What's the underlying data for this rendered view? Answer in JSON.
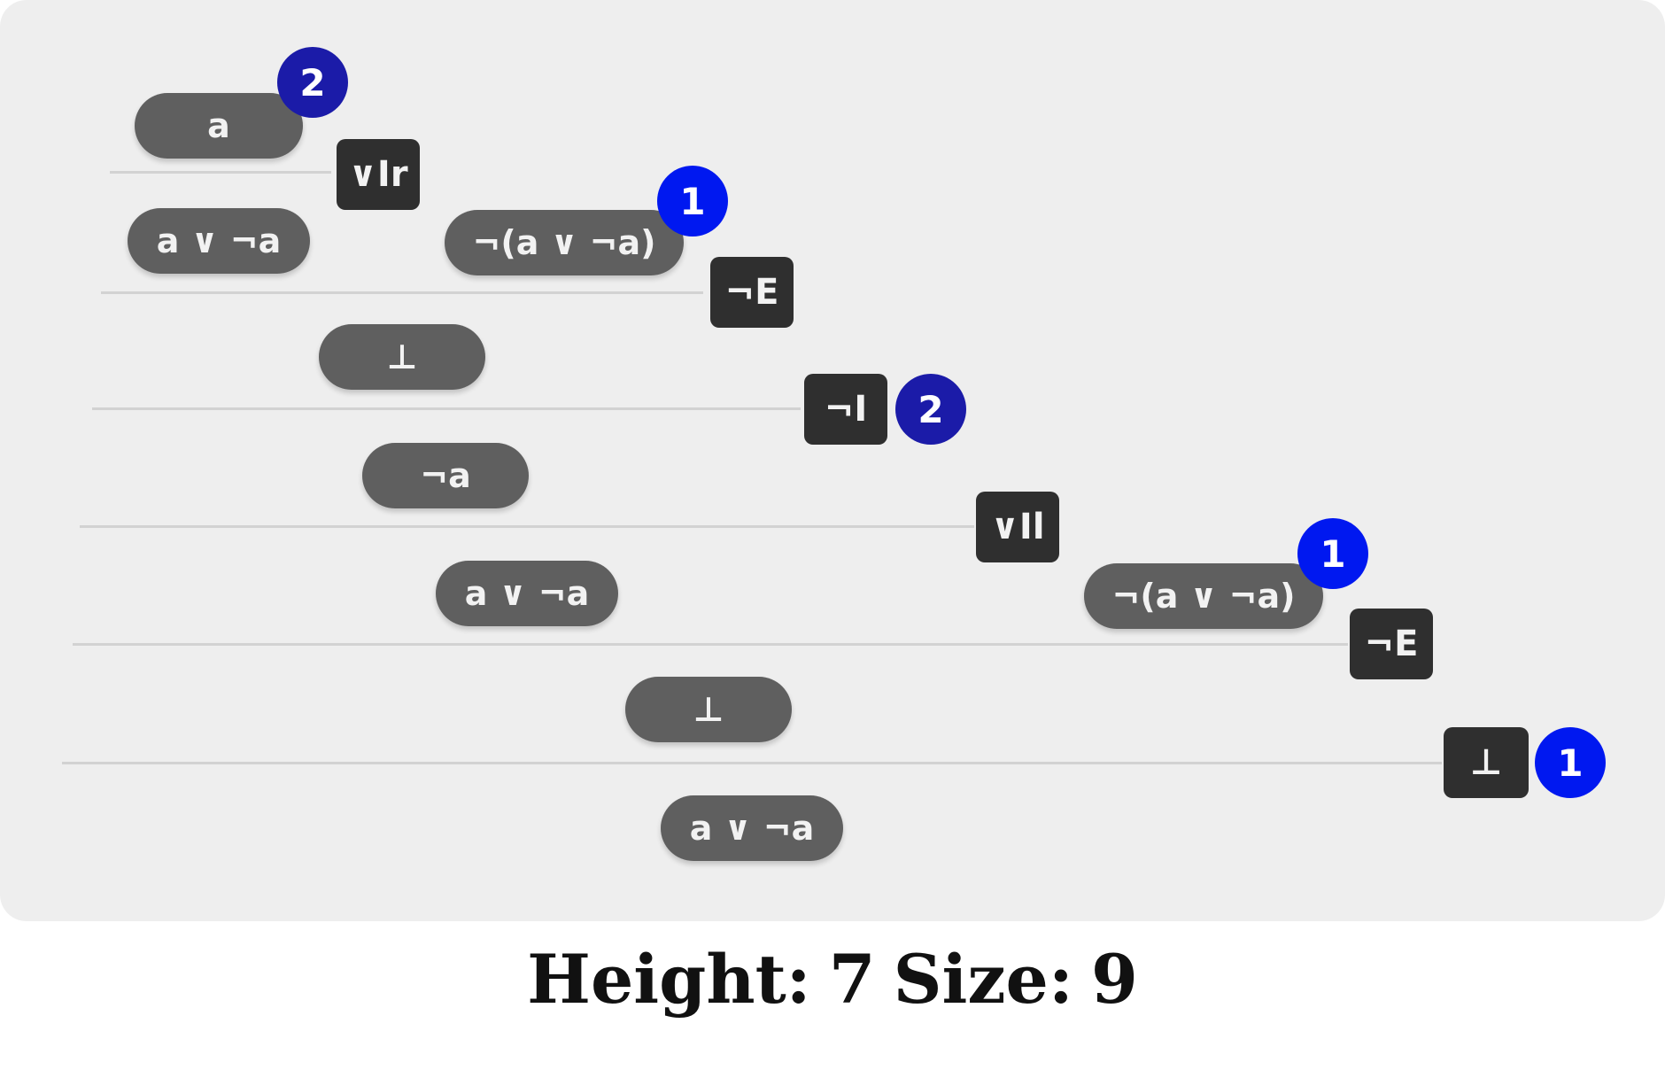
{
  "colors": {
    "badge_dark": "#1b1ba8",
    "badge_bright": "#0018f0",
    "formula_bg": "#5f5f5f",
    "rule_tag_bg": "#2f2f2f",
    "panel_bg": "#eeeeee"
  },
  "proof": {
    "formulas": {
      "f1": "a",
      "f2": "a ∨ ¬a",
      "f3": "¬(a ∨ ¬a)",
      "f4": "⊥",
      "f5": "¬a",
      "f6": "a ∨ ¬a",
      "f7": "¬(a ∨ ¬a)",
      "f8": "⊥",
      "f9": "a ∨ ¬a"
    },
    "rules": {
      "r1": "∨Ir",
      "r2": "¬E",
      "r3": "¬I",
      "r4": "∨Il",
      "r5": "¬E",
      "r6": "⊥"
    },
    "badges": {
      "b1": "2",
      "b2": "1",
      "b3": "2",
      "b4": "1",
      "b5": "1"
    }
  },
  "caption": {
    "height_label": "Height:",
    "height_value": "7",
    "size_label": "Size:",
    "size_value": "9"
  }
}
